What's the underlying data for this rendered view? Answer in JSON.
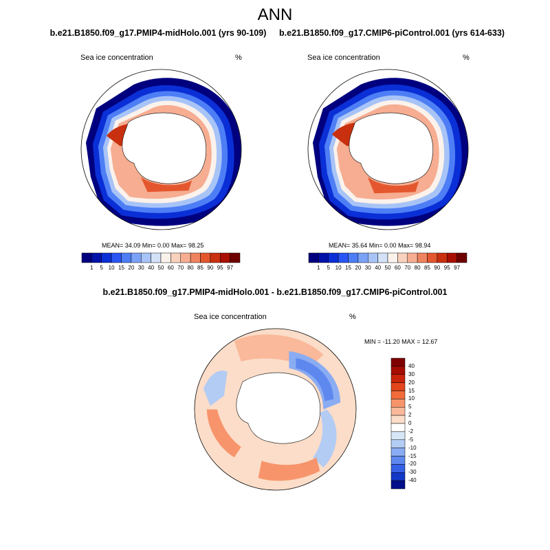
{
  "title": "ANN",
  "panels": {
    "left": {
      "case_title": "b.e21.B1850.f09_g17.PMIP4-midHolo.001 (yrs 90-109)",
      "variable": "Sea ice concentration",
      "units": "%",
      "stats": "MEAN=  34.09  Min=    0.00  Max=  98.25"
    },
    "right": {
      "case_title": "b.e21.B1850.f09_g17.CMIP6-piControl.001 (yrs 614-633)",
      "variable": "Sea ice concentration",
      "units": "%",
      "stats": "MEAN=  35.64  Min=    0.00  Max=  98.94"
    },
    "diff": {
      "case_title": "b.e21.B1850.f09_g17.PMIP4-midHolo.001 - b.e21.B1850.f09_g17.CMIP6-piControl.001",
      "variable": "Sea ice concentration",
      "units": "%",
      "minmax": "MIN = -11.20 MAX =  12.67"
    }
  },
  "chart_data": [
    {
      "type": "heatmap",
      "projection": "south polar stereographic",
      "colorbar": {
        "orientation": "horizontal",
        "levels": [
          "1",
          "5",
          "10",
          "15",
          "20",
          "30",
          "40",
          "50",
          "60",
          "70",
          "80",
          "85",
          "90",
          "95",
          "97"
        ],
        "colors": [
          "#00007f",
          "#0012a8",
          "#0a2fd6",
          "#2a55f5",
          "#4d7ef5",
          "#7aa2f6",
          "#a8c4f7",
          "#d4e2f8",
          "#fbf2ec",
          "#f8d2be",
          "#f6ad91",
          "#f0835f",
          "#e4572e",
          "#c9300f",
          "#a80f02",
          "#6e0000"
        ]
      },
      "stats": {
        "mean": 34.09,
        "min": 0.0,
        "max": 98.25
      }
    },
    {
      "type": "heatmap",
      "projection": "south polar stereographic",
      "colorbar": {
        "orientation": "horizontal",
        "levels": [
          "1",
          "5",
          "10",
          "15",
          "20",
          "30",
          "40",
          "50",
          "60",
          "70",
          "80",
          "85",
          "90",
          "95",
          "97"
        ],
        "colors": [
          "#00007f",
          "#0012a8",
          "#0a2fd6",
          "#2a55f5",
          "#4d7ef5",
          "#7aa2f6",
          "#a8c4f7",
          "#d4e2f8",
          "#fbf2ec",
          "#f8d2be",
          "#f6ad91",
          "#f0835f",
          "#e4572e",
          "#c9300f",
          "#a80f02",
          "#6e0000"
        ]
      },
      "stats": {
        "mean": 35.64,
        "min": 0.0,
        "max": 98.94
      }
    },
    {
      "type": "heatmap",
      "projection": "south polar stereographic",
      "colorbar": {
        "orientation": "vertical",
        "levels": [
          "40",
          "30",
          "20",
          "15",
          "10",
          "5",
          "2",
          "0",
          "-2",
          "-5",
          "-10",
          "-15",
          "-20",
          "-30",
          "-40"
        ],
        "colors": [
          "#7f0000",
          "#a50d02",
          "#c9240a",
          "#e3451c",
          "#f26b3b",
          "#f7946b",
          "#f9b99a",
          "#fbddc9",
          "#ffffff",
          "#d7e6f7",
          "#b3ccf4",
          "#8aacf2",
          "#5f88ef",
          "#3561e6",
          "#1238c6",
          "#000e8a"
        ]
      },
      "stats": {
        "min": -11.2,
        "max": 12.67
      }
    }
  ]
}
